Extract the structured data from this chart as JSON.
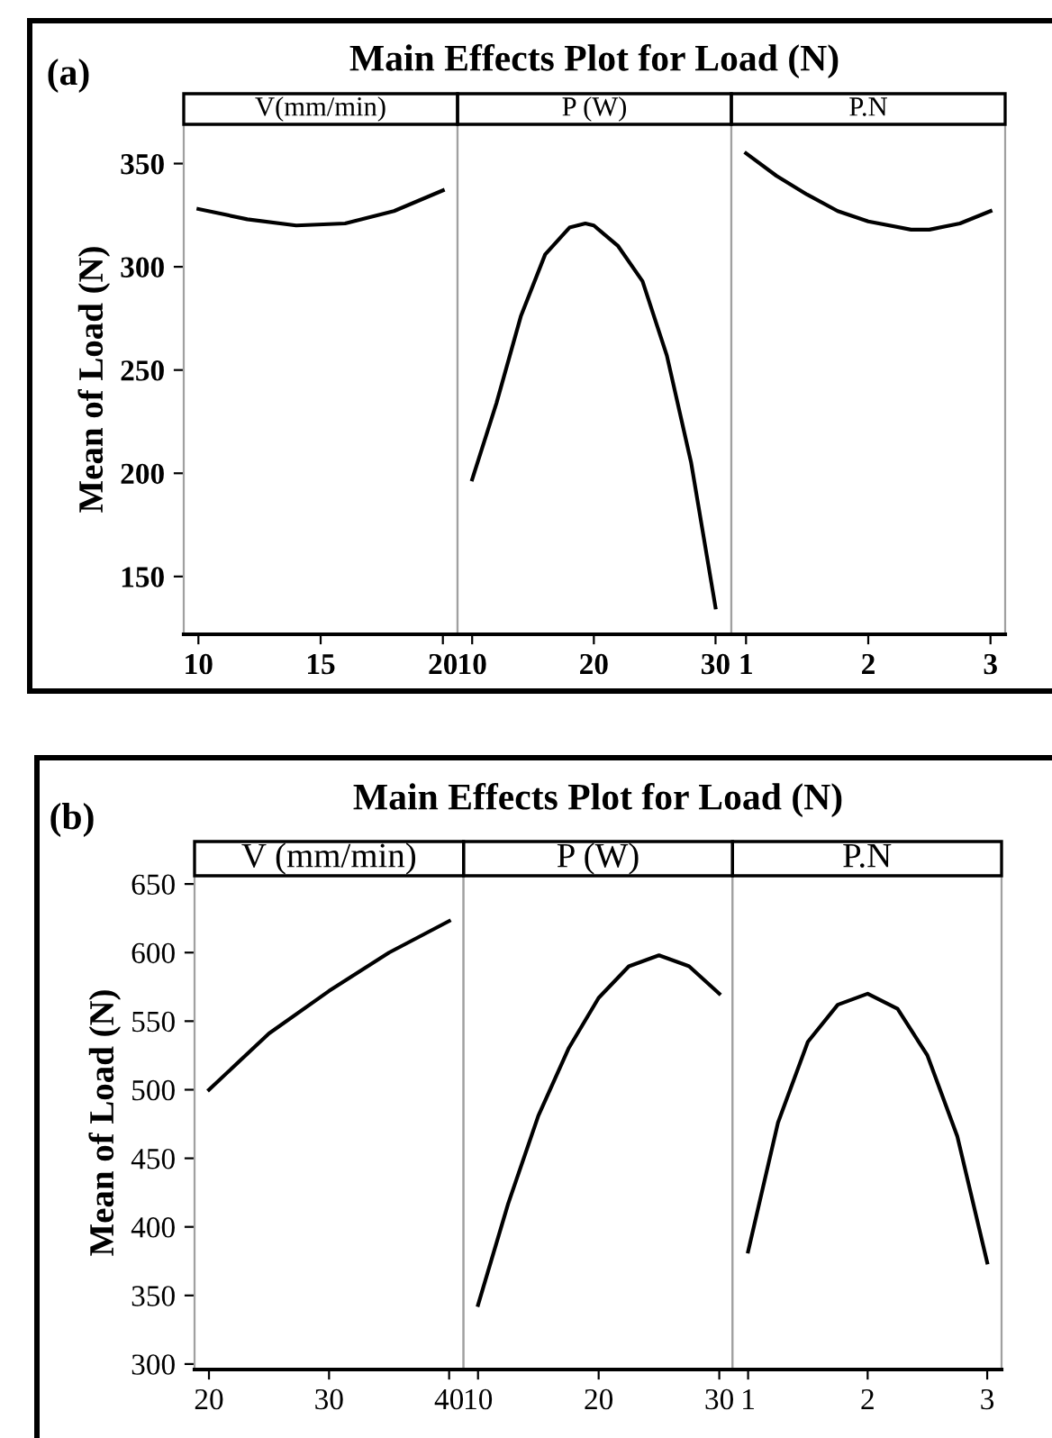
{
  "chart_data": [
    {
      "type": "line",
      "title": "Main Effects Plot for Load (N)",
      "subtitle": "V(mm/min)",
      "ylabel": "Mean of Load (N)",
      "annotations": [
        "(a)"
      ],
      "x": [
        10,
        12,
        14,
        16,
        18,
        20
      ],
      "series": [
        {
          "color": "#000000",
          "values": [
            328,
            323,
            320,
            321,
            327,
            337
          ]
        }
      ],
      "xlim": [
        9.4,
        20.6
      ],
      "xticks": [
        10,
        15,
        20
      ],
      "ylim": [
        122,
        369
      ],
      "yticks": [
        150,
        200,
        250,
        300,
        350
      ]
    },
    {
      "type": "line",
      "subtitle": "P (W)",
      "x": [
        10,
        12,
        14,
        16,
        18,
        19.3,
        20,
        22,
        24,
        26,
        28,
        30
      ],
      "series": [
        {
          "color": "#000000",
          "values": [
            197,
            234,
            276,
            306,
            319,
            321,
            320,
            310,
            293,
            257,
            205,
            135
          ]
        }
      ],
      "xlim": [
        8.8,
        31.3
      ],
      "xticks": [
        10,
        20,
        30
      ],
      "ylim": [
        122,
        369
      ],
      "yticks": [
        150,
        200,
        250,
        300,
        350
      ],
      "tick_labels": "x"
    },
    {
      "type": "line",
      "subtitle": "P.N",
      "x": [
        1,
        1.25,
        1.5,
        1.75,
        2,
        2.35,
        2.5,
        2.75,
        3
      ],
      "series": [
        {
          "color": "#000000",
          "values": [
            355,
            344,
            335,
            327,
            322,
            318,
            318,
            321,
            327
          ]
        }
      ],
      "xlim": [
        0.88,
        3.12
      ],
      "xticks": [
        1,
        2,
        3
      ],
      "ylim": [
        122,
        369
      ],
      "yticks": [
        150,
        200,
        250,
        300,
        350
      ],
      "tick_labels": "x"
    },
    {
      "type": "line",
      "title": "Main Effects Plot for Load (N)",
      "subtitle": "V (mm/min)",
      "ylabel": "Mean of Load (N)",
      "annotations": [
        "(b)"
      ],
      "x": [
        20,
        25,
        30,
        35,
        40
      ],
      "series": [
        {
          "color": "#000000",
          "values": [
            500,
            541,
            572,
            600,
            623
          ]
        }
      ],
      "xlim": [
        18.8,
        41.2
      ],
      "xticks": [
        20,
        30,
        40
      ],
      "ylim": [
        296,
        656
      ],
      "yticks": [
        300,
        350,
        400,
        450,
        500,
        550,
        600,
        650
      ]
    },
    {
      "type": "line",
      "subtitle": "P (W)",
      "x": [
        10,
        12.5,
        15,
        17.5,
        20,
        22.5,
        25,
        27.5,
        30
      ],
      "series": [
        {
          "color": "#000000",
          "values": [
            343,
            417,
            481,
            530,
            567,
            590,
            598,
            590,
            570
          ]
        }
      ],
      "xlim": [
        8.8,
        31.1
      ],
      "xticks": [
        10,
        20,
        30
      ],
      "ylim": [
        296,
        656
      ],
      "yticks": [
        300,
        350,
        400,
        450,
        500,
        550,
        600,
        650
      ],
      "tick_labels": "x"
    },
    {
      "type": "line",
      "subtitle": "P.N",
      "x": [
        1,
        1.25,
        1.5,
        1.75,
        2,
        2.25,
        2.5,
        2.75,
        3
      ],
      "series": [
        {
          "color": "#000000",
          "values": [
            382,
            476,
            535,
            562,
            570,
            559,
            525,
            466,
            374
          ]
        }
      ],
      "xlim": [
        0.87,
        3.12
      ],
      "xticks": [
        1,
        2,
        3
      ],
      "ylim": [
        296,
        656
      ],
      "yticks": [
        300,
        350,
        400,
        450,
        500,
        550,
        600,
        650
      ],
      "tick_labels": "x"
    }
  ]
}
